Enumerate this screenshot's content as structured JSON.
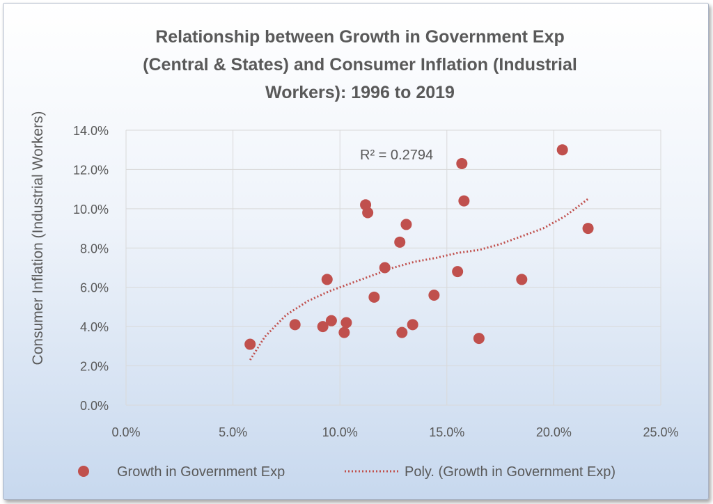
{
  "chart_data": {
    "type": "scatter",
    "title_lines": [
      "Relationship between Growth in Government Exp",
      "(Central & States) and Consumer Inflation (Industrial",
      "Workers): 1996 to 2019"
    ],
    "xlabel": "",
    "ylabel": "Consumer Inflation (Industrial Workers)",
    "xlim": [
      0,
      0.25
    ],
    "ylim": [
      0,
      0.14
    ],
    "x_ticks": [
      0,
      0.05,
      0.1,
      0.15,
      0.2,
      0.25
    ],
    "x_tick_labels": [
      "0.0%",
      "5.0%",
      "10.0%",
      "15.0%",
      "20.0%",
      "25.0%"
    ],
    "y_ticks": [
      0,
      0.02,
      0.04,
      0.06,
      0.08,
      0.1,
      0.12,
      0.14
    ],
    "y_tick_labels": [
      "0.0%",
      "2.0%",
      "4.0%",
      "6.0%",
      "8.0%",
      "10.0%",
      "12.0%",
      "14.0%"
    ],
    "grid": true,
    "legend_position": "bottom",
    "series": [
      {
        "name": "Growth in Government Exp",
        "color": "#c0504d",
        "marker": "circle",
        "points": [
          {
            "x": 0.058,
            "y": 0.031
          },
          {
            "x": 0.079,
            "y": 0.041
          },
          {
            "x": 0.092,
            "y": 0.04
          },
          {
            "x": 0.094,
            "y": 0.064
          },
          {
            "x": 0.096,
            "y": 0.043
          },
          {
            "x": 0.102,
            "y": 0.037
          },
          {
            "x": 0.103,
            "y": 0.042
          },
          {
            "x": 0.112,
            "y": 0.102
          },
          {
            "x": 0.113,
            "y": 0.098
          },
          {
            "x": 0.116,
            "y": 0.055
          },
          {
            "x": 0.121,
            "y": 0.07
          },
          {
            "x": 0.128,
            "y": 0.083
          },
          {
            "x": 0.129,
            "y": 0.037
          },
          {
            "x": 0.131,
            "y": 0.092
          },
          {
            "x": 0.134,
            "y": 0.041
          },
          {
            "x": 0.144,
            "y": 0.056
          },
          {
            "x": 0.155,
            "y": 0.068
          },
          {
            "x": 0.157,
            "y": 0.123
          },
          {
            "x": 0.158,
            "y": 0.104
          },
          {
            "x": 0.165,
            "y": 0.034
          },
          {
            "x": 0.185,
            "y": 0.064
          },
          {
            "x": 0.204,
            "y": 0.13
          },
          {
            "x": 0.216,
            "y": 0.09
          }
        ]
      }
    ],
    "trendline": {
      "name": "Poly. (Growth in Government Exp)",
      "style": "dotted",
      "color": "#c0504d",
      "points": [
        {
          "x": 0.058,
          "y": 0.023
        },
        {
          "x": 0.065,
          "y": 0.035
        },
        {
          "x": 0.075,
          "y": 0.046
        },
        {
          "x": 0.085,
          "y": 0.053
        },
        {
          "x": 0.095,
          "y": 0.058
        },
        {
          "x": 0.105,
          "y": 0.062
        },
        {
          "x": 0.115,
          "y": 0.066
        },
        {
          "x": 0.125,
          "y": 0.07
        },
        {
          "x": 0.135,
          "y": 0.073
        },
        {
          "x": 0.145,
          "y": 0.075
        },
        {
          "x": 0.155,
          "y": 0.0775
        },
        {
          "x": 0.165,
          "y": 0.079
        },
        {
          "x": 0.175,
          "y": 0.082
        },
        {
          "x": 0.185,
          "y": 0.086
        },
        {
          "x": 0.195,
          "y": 0.09
        },
        {
          "x": 0.205,
          "y": 0.096
        },
        {
          "x": 0.216,
          "y": 0.105
        }
      ]
    },
    "annotation": "R² = 0.2794",
    "legend": [
      {
        "label": "Growth in Government Exp",
        "kind": "marker"
      },
      {
        "label": "Poly. (Growth in Government Exp)",
        "kind": "dotted-line"
      }
    ]
  }
}
